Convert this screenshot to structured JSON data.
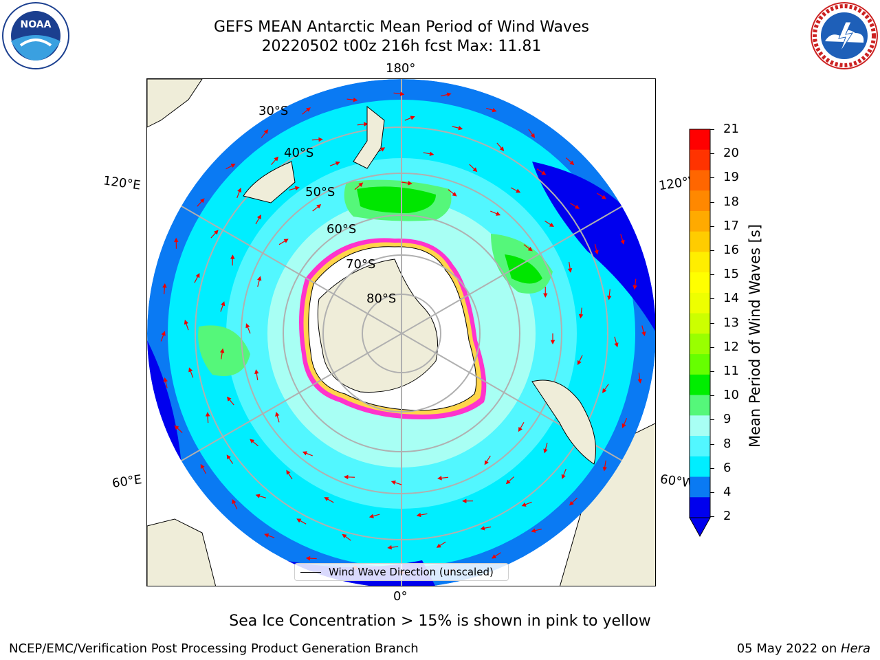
{
  "header": {
    "title_line1": "GEFS MEAN Antarctic Mean Period of Wind Waves",
    "title_line2": "20220502 t00z 216h fcst   Max: 11.81"
  },
  "logos": {
    "left": {
      "text": "NOAA",
      "ring_text": "NATIONAL OCEANIC AND ATMOSPHERIC ADMINISTRATION",
      "bottom_text": "U.S. DEPARTMENT OF COMMERCE"
    },
    "right": {
      "ring_text": "NATIONAL WEATHER SERVICE"
    }
  },
  "map": {
    "projection": "south polar stereographic",
    "lon_labels": {
      "top": "180°",
      "bottom": "0°",
      "upper_left": "120°E",
      "upper_right": "120°W",
      "lower_left": "60°E",
      "lower_right": "60°W"
    },
    "lat_labels": [
      "30°S",
      "40°S",
      "50°S",
      "60°S",
      "70°S",
      "80°S"
    ],
    "legend_label": "Wind Wave Direction (unscaled)",
    "colors": {
      "land": "#efedd9",
      "ice_free_shelf": "#ffffff",
      "period_2_4": "#0a7af3",
      "period_4_6": "#00eeff",
      "period_6_8": "#52f7ff",
      "period_8_9": "#a8fff4",
      "period_9_10": "#55f77a",
      "period_10_11": "#00e600",
      "deep_blue": "#0000ee",
      "arrow": "#ee0000",
      "sea_ice_pink": "#ff33cc",
      "sea_ice_yellow": "#ffd54a"
    }
  },
  "colorbar": {
    "label": "Mean Period of Wind Waves [s]",
    "ticks": [
      "21",
      "20",
      "19",
      "18",
      "17",
      "16",
      "15",
      "14",
      "13",
      "12",
      "11",
      "10",
      "9",
      "8",
      "6",
      "4",
      "2"
    ],
    "tick_values": [
      21,
      20,
      19,
      18,
      17,
      16,
      15,
      14,
      13,
      12,
      11,
      10,
      9,
      8,
      6,
      4,
      2
    ],
    "colors": [
      "#ff0000",
      "#ff3300",
      "#ff6600",
      "#ff8800",
      "#ffaa00",
      "#ffcc00",
      "#ffee00",
      "#ffff00",
      "#eeff00",
      "#ccff00",
      "#99ff00",
      "#66ff00",
      "#00ee00",
      "#55f77a",
      "#a8fff4",
      "#52f7ff",
      "#00eeff",
      "#0a7af3",
      "#0000ee"
    ],
    "extend_min_color": "#0000ee"
  },
  "caption": "Sea Ice Concentration > 15% is shown in pink to yellow",
  "footer": {
    "left": "NCEP/EMC/Verification Post Processing Product Generation Branch",
    "right_date": "05 May 2022 on ",
    "right_machine": "Hera"
  }
}
